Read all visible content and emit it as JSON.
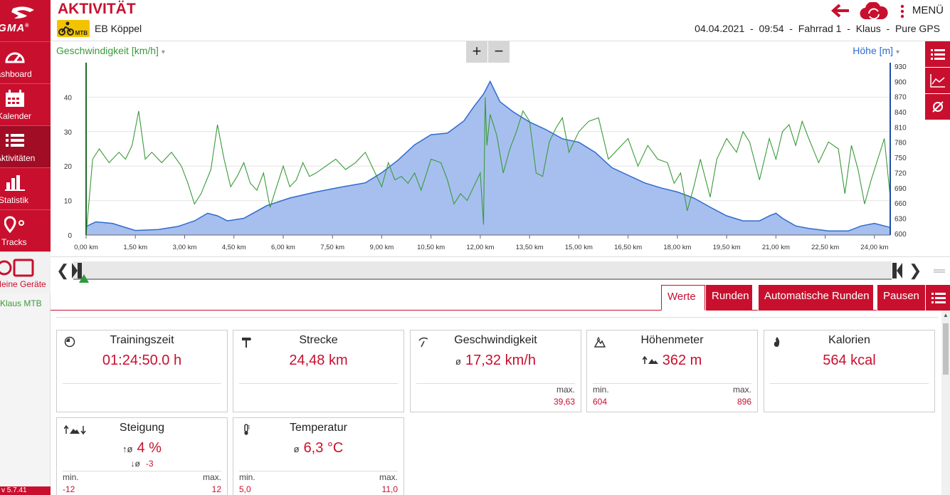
{
  "brand": {
    "logo_text": "IGMA",
    "logo_mark": "®"
  },
  "sidebar": {
    "items": [
      {
        "label": "Dashboard",
        "icon": "gauge-icon"
      },
      {
        "label": "Kalender",
        "icon": "calendar-icon"
      },
      {
        "label": "Aktivitäten",
        "icon": "list-icon",
        "active": true
      },
      {
        "label": "Statistik",
        "icon": "bar-chart-icon"
      },
      {
        "label": "Tracks",
        "icon": "map-pin-icon"
      }
    ],
    "devices_label": "Meine Geräte",
    "device_name": "Klaus MTB",
    "version": "v 5.7.41"
  },
  "header": {
    "title": "AKTIVITÄT",
    "sport_badge": "MTB",
    "activity_name": "EB Köppel",
    "date": "04.04.2021",
    "time": "09:54",
    "bike": "Fahrrad 1",
    "user": "Klaus",
    "source": "Pure GPS",
    "menu_label": "MENÜ"
  },
  "chart": {
    "left_selector": "Geschwindigkeit [km/h]",
    "right_selector": "Höhe [m]",
    "zoom_in": "+",
    "zoom_out": "−"
  },
  "chart_data": {
    "type": "area",
    "xlabel": "",
    "x_ticks": [
      "0,00 km",
      "1,50 km",
      "3,00 km",
      "4,50 km",
      "6,00 km",
      "7,50 km",
      "9,00 km",
      "10,50 km",
      "12,00 km",
      "13,50 km",
      "15,00 km",
      "16,50 km",
      "18,00 km",
      "19,50 km",
      "21,00 km",
      "22,50 km",
      "24,00 km"
    ],
    "xlim": [
      0,
      24.48
    ],
    "left_axis": {
      "label": "Geschwindigkeit [km/h]",
      "ticks": [
        "0",
        "10",
        "20",
        "30",
        "40"
      ],
      "ylim": [
        0,
        50
      ],
      "color": "#3a9a3a"
    },
    "right_axis": {
      "label": "Höhe [m]",
      "ticks": [
        "600",
        "630",
        "660",
        "690",
        "720",
        "750",
        "780",
        "810",
        "840",
        "870",
        "900",
        "930"
      ],
      "ylim": [
        597,
        937
      ],
      "color": "#2d6bd0"
    },
    "series": [
      {
        "name": "Höhe [m]",
        "type": "area",
        "axis": "right",
        "color": "#2d6bd0",
        "x": [
          0,
          0.3,
          0.8,
          1.5,
          2.2,
          2.8,
          3.3,
          3.7,
          4.0,
          4.3,
          4.8,
          5.5,
          6.2,
          7.0,
          7.8,
          8.5,
          9.0,
          9.5,
          10.0,
          10.5,
          11.0,
          11.5,
          11.8,
          12.1,
          12.3,
          12.6,
          13.0,
          13.5,
          14.0,
          14.5,
          15.0,
          15.5,
          16.0,
          16.5,
          17.0,
          17.5,
          18.0,
          18.5,
          19.0,
          19.5,
          20.0,
          20.5,
          20.8,
          21.0,
          21.2,
          21.6,
          22.0,
          22.6,
          23.2,
          23.6,
          24.0,
          24.48
        ],
        "values": [
          614,
          623,
          620,
          606,
          608,
          614,
          625,
          640,
          635,
          625,
          630,
          655,
          670,
          682,
          692,
          700,
          720,
          745,
          775,
          795,
          798,
          822,
          850,
          875,
          900,
          860,
          840,
          820,
          805,
          787,
          780,
          760,
          730,
          715,
          700,
          690,
          682,
          670,
          652,
          635,
          625,
          625,
          635,
          640,
          630,
          615,
          610,
          605,
          605,
          615,
          620,
          612
        ]
      },
      {
        "name": "Geschwindigkeit [km/h]",
        "type": "line",
        "axis": "left",
        "color": "#3a9a3a",
        "x": [
          0,
          0.2,
          0.4,
          0.7,
          1.0,
          1.2,
          1.4,
          1.6,
          1.8,
          2.0,
          2.3,
          2.6,
          2.9,
          3.1,
          3.3,
          3.5,
          3.8,
          4.0,
          4.2,
          4.4,
          4.6,
          4.8,
          5.0,
          5.2,
          5.4,
          5.6,
          5.8,
          6.0,
          6.2,
          6.4,
          6.6,
          6.8,
          7.0,
          7.3,
          7.6,
          7.9,
          8.2,
          8.5,
          8.8,
          9.0,
          9.2,
          9.4,
          9.6,
          9.8,
          10.0,
          10.2,
          10.5,
          10.8,
          11.0,
          11.2,
          11.4,
          11.6,
          11.8,
          12.0,
          12.1,
          12.15,
          12.2,
          12.3,
          12.5,
          12.7,
          12.9,
          13.1,
          13.3,
          13.5,
          13.7,
          13.9,
          14.1,
          14.3,
          14.5,
          14.7,
          15.0,
          15.3,
          15.6,
          15.9,
          16.2,
          16.5,
          16.8,
          17.1,
          17.4,
          17.7,
          17.9,
          18.1,
          18.3,
          18.5,
          18.7,
          19.0,
          19.2,
          19.5,
          19.8,
          20.0,
          20.2,
          20.5,
          20.8,
          21.0,
          21.2,
          21.4,
          21.6,
          21.8,
          22.0,
          22.3,
          22.6,
          22.9,
          23.1,
          23.3,
          23.5,
          23.7,
          23.9,
          24.1,
          24.3,
          24.48
        ],
        "values": [
          0,
          22,
          25,
          21,
          24,
          22,
          26,
          36,
          22,
          24,
          21,
          24,
          20,
          15,
          9,
          12,
          19,
          32,
          22,
          14,
          17,
          21,
          15,
          13,
          18,
          8,
          14,
          20,
          14,
          16,
          21,
          17,
          18,
          20,
          22,
          19,
          21,
          24,
          18,
          14,
          21,
          16,
          17,
          15,
          18,
          13,
          22,
          21,
          16,
          9,
          12,
          10,
          14,
          18,
          3,
          40,
          26,
          35,
          29,
          18,
          25,
          30,
          36,
          33,
          18,
          17,
          27,
          31,
          34,
          24,
          30,
          33,
          34,
          22,
          25,
          28,
          20,
          26,
          22,
          21,
          15,
          18,
          7,
          14,
          22,
          11,
          22,
          28,
          24,
          30,
          27,
          16,
          28,
          22,
          30,
          32,
          26,
          33,
          28,
          21,
          27,
          25,
          12,
          26,
          19,
          9,
          16,
          22,
          28,
          11
        ]
      }
    ]
  },
  "slider": {
    "left_label": "❮",
    "right_label": "❯"
  },
  "tabs": [
    {
      "label": "Werte",
      "active": true
    },
    {
      "label": "Runden"
    },
    {
      "label": "Automatische Runden"
    },
    {
      "label": "Pausen"
    }
  ],
  "cards": {
    "trainingszeit": {
      "title": "Trainingszeit",
      "value": "01:24:50.0 h"
    },
    "strecke": {
      "title": "Strecke",
      "value": "24,48 km"
    },
    "geschwindigkeit": {
      "title": "Geschwindigkeit",
      "prefix": "ø",
      "value": "17,32 km/h",
      "max_label": "max.",
      "max_value": "39,63"
    },
    "hoehenmeter": {
      "title": "Höhenmeter",
      "value": "362 m",
      "min_label": "min.",
      "min_value": "604",
      "max_label": "max.",
      "max_value": "896"
    },
    "kalorien": {
      "title": "Kalorien",
      "value": "564 kcal"
    },
    "steigung": {
      "title": "Steigung",
      "up_prefix": "↑ø",
      "value": "4 %",
      "down_prefix": "↓ø",
      "down_value": "-3",
      "min_label": "min.",
      "min_value": "-12",
      "max_label": "max.",
      "max_value": "12"
    },
    "temperatur": {
      "title": "Temperatur",
      "prefix": "ø",
      "value": "6,3 °C",
      "min_label": "min.",
      "min_value": "5,0",
      "max_label": "max.",
      "max_value": "11,0"
    }
  }
}
